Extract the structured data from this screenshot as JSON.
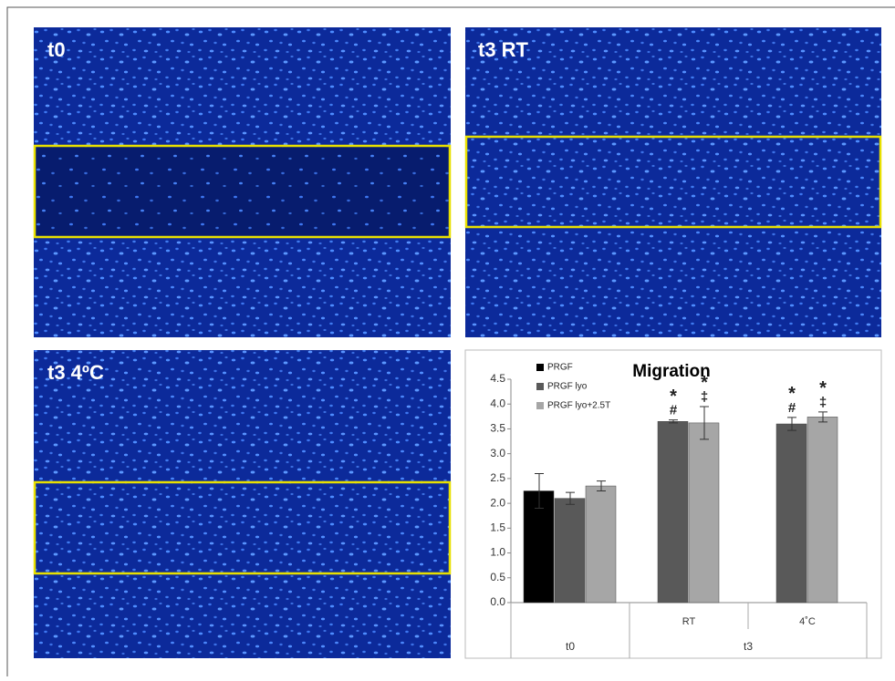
{
  "panels": [
    {
      "label": "t0"
    },
    {
      "label": "t3 RT"
    },
    {
      "label": "t3 4ºC"
    }
  ],
  "chart_data": {
    "type": "bar",
    "title": "Migration",
    "categories": [
      null,
      "RT",
      "4˚C"
    ],
    "category_groups": [
      {
        "name": "t0",
        "categories": [
          0
        ]
      },
      {
        "name": "t3",
        "categories": [
          1,
          2
        ]
      }
    ],
    "series": [
      {
        "name": "PRGF",
        "color": "#000000",
        "values": [
          2.25,
          null,
          null
        ],
        "errors": [
          0.35,
          null,
          null
        ]
      },
      {
        "name": "PRGF lyo",
        "color": "#595959",
        "values": [
          2.1,
          3.65,
          3.6
        ],
        "errors": [
          0.12,
          0.03,
          0.13
        ]
      },
      {
        "name": "PRGF lyo+2.5T",
        "color": "#a6a6a6",
        "values": [
          2.35,
          3.62,
          3.74
        ],
        "errors": [
          0.1,
          0.33,
          0.1
        ]
      }
    ],
    "annotations": [
      {
        "series": 1,
        "category": 1,
        "lines": [
          "*",
          "#"
        ]
      },
      {
        "series": 2,
        "category": 1,
        "lines": [
          "*",
          "‡"
        ]
      },
      {
        "series": 1,
        "category": 2,
        "lines": [
          "*",
          "#"
        ]
      },
      {
        "series": 2,
        "category": 2,
        "lines": [
          "*",
          "‡"
        ]
      }
    ],
    "ylim": [
      0,
      4.5
    ],
    "yticks": [
      {
        "value": 0,
        "label": "0.0"
      },
      0.5,
      {
        "value": 1,
        "label": "1.0"
      },
      1.5,
      {
        "value": 2,
        "label": "2.0"
      },
      2.5,
      {
        "value": 3,
        "label": "3.0"
      },
      3.5,
      {
        "value": 4,
        "label": "4.0"
      },
      4.5
    ],
    "grid": false,
    "legend": "top-left"
  }
}
